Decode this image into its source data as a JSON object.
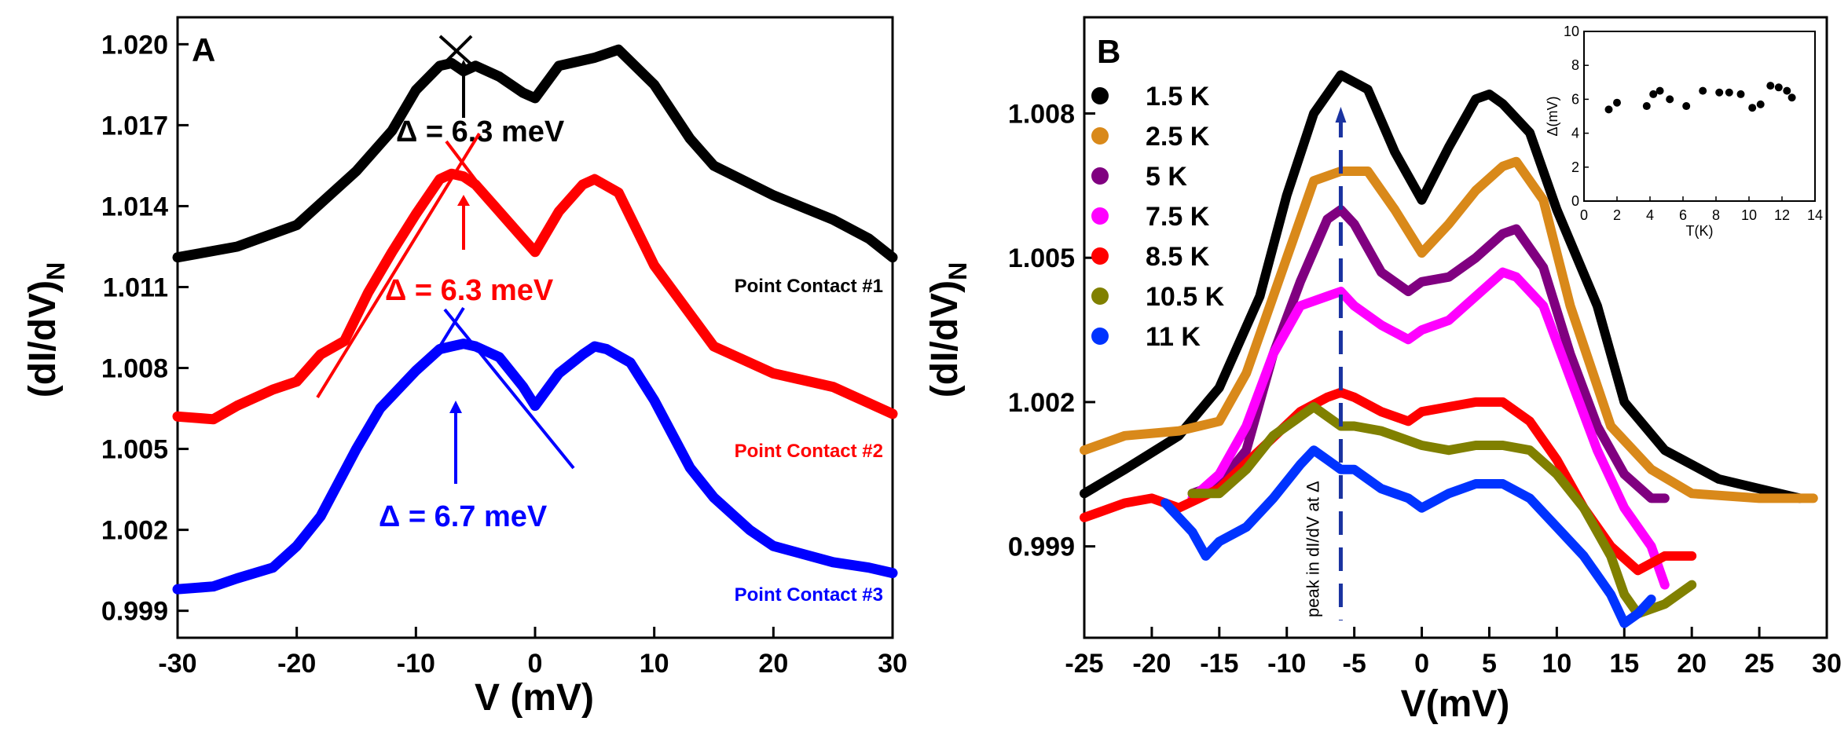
{
  "chart_data": [
    {
      "panel": "A",
      "type": "line",
      "xlabel": "V (mV)",
      "ylabel_main": "(dI/dV)",
      "ylabel_sub": "N",
      "xlim": [
        -30,
        30
      ],
      "ylim": [
        0.998,
        1.021
      ],
      "xticks": [
        -30,
        -20,
        -10,
        0,
        10,
        20,
        30
      ],
      "yticks": [
        0.999,
        1.002,
        1.005,
        1.008,
        1.011,
        1.014,
        1.017,
        1.02
      ],
      "ytick_labels": [
        "0.999",
        "1.002",
        "1.005",
        "1.008",
        "1.011",
        "1.014",
        "1.017",
        "1.020"
      ],
      "series": [
        {
          "name": "Point Contact #1",
          "color": "#000000",
          "x": [
            -30,
            -25,
            -20,
            -15,
            -12,
            -10,
            -8,
            -7,
            -6,
            -5,
            -3,
            -1,
            0,
            2,
            5,
            7,
            10,
            13,
            15,
            20,
            25,
            28,
            30
          ],
          "y": [
            1.0121,
            1.0125,
            1.0133,
            1.0153,
            1.0168,
            1.0183,
            1.0192,
            1.0193,
            1.019,
            1.0192,
            1.0188,
            1.0182,
            1.018,
            1.0192,
            1.0195,
            1.0198,
            1.0185,
            1.0165,
            1.0155,
            1.0144,
            1.0135,
            1.0128,
            1.0121
          ],
          "annotation": "Δ = 6.3 meV"
        },
        {
          "name": "Point Contact #2",
          "color": "#ff0000",
          "x": [
            -30,
            -27,
            -25,
            -22,
            -20,
            -18,
            -16,
            -14,
            -12,
            -10,
            -8,
            -7,
            -6,
            -5,
            -3,
            -1,
            0,
            2,
            4,
            5,
            7,
            10,
            13,
            15,
            20,
            25,
            28,
            30
          ],
          "y": [
            1.0062,
            1.0061,
            1.0066,
            1.0072,
            1.0075,
            1.0085,
            1.009,
            1.0108,
            1.0123,
            1.0137,
            1.015,
            1.0152,
            1.0151,
            1.0148,
            1.0138,
            1.0128,
            1.0123,
            1.0138,
            1.0148,
            1.015,
            1.0145,
            1.0118,
            1.01,
            1.0088,
            1.0078,
            1.0073,
            1.0067,
            1.0063
          ],
          "annotation": "Δ = 6.3 meV"
        },
        {
          "name": "Point Contact #3",
          "color": "#0000ff",
          "x": [
            -30,
            -27,
            -25,
            -22,
            -20,
            -18,
            -15,
            -13,
            -10,
            -8,
            -7,
            -6,
            -5,
            -3,
            -1,
            0,
            2,
            4,
            5,
            6,
            8,
            10,
            13,
            15,
            18,
            20,
            25,
            28,
            30
          ],
          "y": [
            0.9998,
            0.9999,
            1.0002,
            1.0006,
            1.0014,
            1.0025,
            1.005,
            1.0065,
            1.0079,
            1.0087,
            1.0088,
            1.0089,
            1.0088,
            1.0084,
            1.0073,
            1.0066,
            1.0078,
            1.0085,
            1.0088,
            1.0087,
            1.0082,
            1.0068,
            1.0043,
            1.0032,
            1.002,
            1.0014,
            1.0008,
            1.0006,
            1.0004
          ],
          "annotation": "Δ = 6.7 meV"
        }
      ]
    },
    {
      "panel": "B",
      "type": "line",
      "xlabel": "V(mV)",
      "ylabel_main": "(dI/dV)",
      "ylabel_sub": "N",
      "xlim": [
        -25,
        30
      ],
      "ylim": [
        0.9971,
        1.01
      ],
      "xticks": [
        -25,
        -20,
        -15,
        -10,
        -5,
        0,
        5,
        10,
        15,
        20,
        25,
        30
      ],
      "yticks": [
        0.999,
        1.002,
        1.005,
        1.008
      ],
      "ytick_labels": [
        "0.999",
        "1.002",
        "1.005",
        "1.008"
      ],
      "vline_x": -6,
      "vline_label": "peak in dI/dV at Δ",
      "series": [
        {
          "name": "1.5 K",
          "color": "#000000",
          "x": [
            -25,
            -22,
            -18,
            -15,
            -12,
            -10,
            -8,
            -6,
            -4,
            -2,
            0,
            2,
            4,
            5,
            6,
            8,
            10,
            13,
            15,
            18,
            22,
            25,
            28
          ],
          "y": [
            1.0001,
            1.0006,
            1.0013,
            1.0023,
            1.0042,
            1.0063,
            1.008,
            1.0088,
            1.0085,
            1.0072,
            1.0062,
            1.0073,
            1.0083,
            1.0084,
            1.0082,
            1.0076,
            1.006,
            1.004,
            1.002,
            1.001,
            1.0004,
            1.0002,
            1.0
          ]
        },
        {
          "name": "2.5 K",
          "color": "#d9891a",
          "x": [
            -25,
            -22,
            -18,
            -15,
            -13,
            -10,
            -8,
            -6,
            -4,
            -2,
            0,
            2,
            4,
            6,
            7,
            9,
            11,
            14,
            17,
            20,
            25,
            29
          ],
          "y": [
            1.001,
            1.0013,
            1.0014,
            1.0016,
            1.0026,
            1.005,
            1.0066,
            1.0068,
            1.0068,
            1.006,
            1.0051,
            1.0057,
            1.0064,
            1.0069,
            1.007,
            1.0062,
            1.004,
            1.0015,
            1.0006,
            1.0001,
            1.0,
            1.0
          ]
        },
        {
          "name": "5 K",
          "color": "#800080",
          "x": [
            -17,
            -15,
            -13,
            -11,
            -9,
            -7,
            -6,
            -5,
            -3,
            -1,
            0,
            2,
            4,
            6,
            7,
            9,
            11,
            13,
            15,
            17,
            18
          ],
          "y": [
            1.0001,
            1.0003,
            1.001,
            1.003,
            1.0045,
            1.0058,
            1.006,
            1.0057,
            1.0047,
            1.0043,
            1.0045,
            1.0046,
            1.005,
            1.0055,
            1.0056,
            1.0048,
            1.003,
            1.0015,
            1.0005,
            1.0,
            1.0
          ]
        },
        {
          "name": "7.5 K",
          "color": "#ff00ff",
          "x": [
            -17,
            -15,
            -13,
            -11,
            -9,
            -7,
            -6,
            -5,
            -3,
            -1,
            0,
            2,
            4,
            6,
            7,
            9,
            11,
            13,
            15,
            17,
            18
          ],
          "y": [
            1.0,
            1.0005,
            1.0015,
            1.003,
            1.004,
            1.0042,
            1.0043,
            1.004,
            1.0036,
            1.0033,
            1.0035,
            1.0037,
            1.0042,
            1.0047,
            1.0046,
            1.004,
            1.0025,
            1.001,
            0.9998,
            0.999,
            0.9982
          ]
        },
        {
          "name": "8.5 K",
          "color": "#ff0000",
          "x": [
            -25,
            -22,
            -20,
            -18,
            -15,
            -12,
            -9,
            -7,
            -6,
            -5,
            -3,
            -1,
            0,
            2,
            4,
            6,
            8,
            10,
            12,
            14,
            16,
            18,
            20
          ],
          "y": [
            0.9996,
            0.9999,
            1.0,
            0.9998,
            1.0002,
            1.001,
            1.0018,
            1.0021,
            1.0022,
            1.0021,
            1.0018,
            1.0016,
            1.0018,
            1.0019,
            1.002,
            1.002,
            1.0016,
            1.0008,
            0.9998,
            0.999,
            0.9985,
            0.9988,
            0.9988
          ]
        },
        {
          "name": "10.5 K",
          "color": "#808000",
          "x": [
            -17,
            -15,
            -13,
            -11,
            -9,
            -8,
            -7,
            -6,
            -5,
            -3,
            -1,
            0,
            2,
            4,
            6,
            8,
            10,
            12,
            14,
            15,
            16,
            18,
            20
          ],
          "y": [
            1.0001,
            1.0001,
            1.0006,
            1.0013,
            1.0017,
            1.0019,
            1.0017,
            1.0015,
            1.0015,
            1.0014,
            1.0012,
            1.0011,
            1.001,
            1.0011,
            1.0011,
            1.001,
            1.0005,
            0.9998,
            0.9988,
            0.998,
            0.9976,
            0.9978,
            0.9982
          ]
        },
        {
          "name": "11 K",
          "color": "#0033ff",
          "x": [
            -19,
            -17,
            -16,
            -15,
            -13,
            -11,
            -9,
            -8,
            -7,
            -6,
            -5,
            -3,
            -1,
            0,
            2,
            4,
            6,
            8,
            10,
            12,
            14,
            15,
            16,
            17
          ],
          "y": [
            0.9999,
            0.9993,
            0.9988,
            0.9991,
            0.9994,
            1.0,
            1.0007,
            1.001,
            1.0008,
            1.0006,
            1.0006,
            1.0002,
            1.0,
            0.9998,
            1.0001,
            1.0003,
            1.0003,
            1.0,
            0.9994,
            0.9988,
            0.998,
            0.9974,
            0.9976,
            0.9979
          ]
        }
      ]
    },
    {
      "panel": "B-inset",
      "type": "scatter",
      "xlabel": "T(K)",
      "ylabel": "Δ(mV)",
      "xlim": [
        0,
        14
      ],
      "ylim": [
        0,
        10
      ],
      "xticks": [
        0,
        2,
        4,
        6,
        8,
        10,
        12,
        14
      ],
      "yticks": [
        0,
        2,
        4,
        6,
        8,
        10
      ],
      "x": [
        1.5,
        2.0,
        3.8,
        4.2,
        4.6,
        5.2,
        6.2,
        7.2,
        8.2,
        8.8,
        9.5,
        10.2,
        10.7,
        11.3,
        11.8,
        12.3,
        12.6
      ],
      "y": [
        5.4,
        5.8,
        5.6,
        6.3,
        6.5,
        6.0,
        5.6,
        6.5,
        6.4,
        6.4,
        6.3,
        5.5,
        5.7,
        6.8,
        6.7,
        6.5,
        6.1
      ]
    }
  ]
}
